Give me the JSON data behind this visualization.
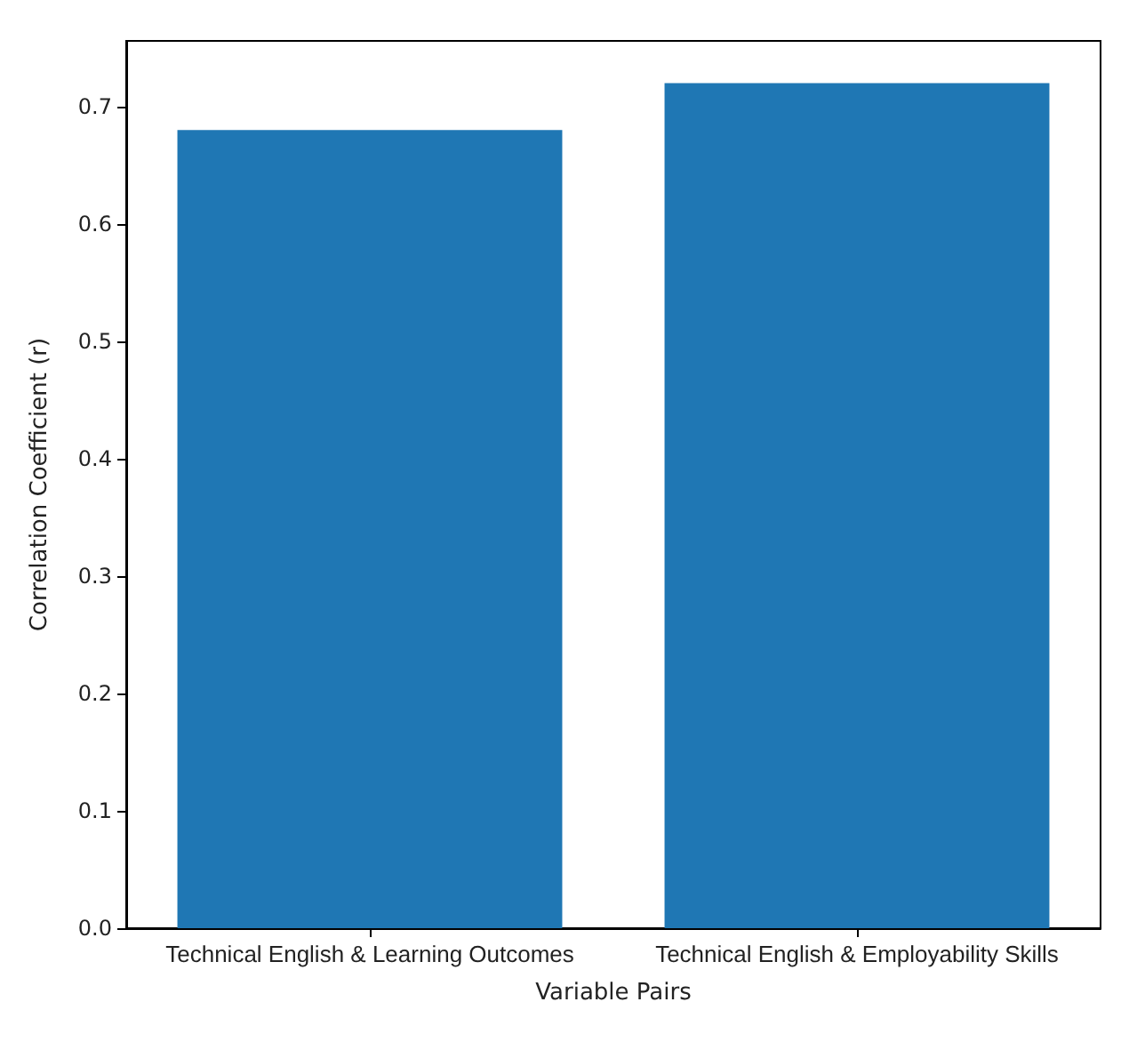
{
  "chart_data": {
    "type": "bar",
    "xlabel": "Variable Pairs",
    "ylabel": "Correlation Coefficient (r)",
    "categories": [
      "Technical English & Learning Outcomes",
      "Technical English & Employability Skills"
    ],
    "values": [
      0.68,
      0.72
    ],
    "color": "#1f77b4",
    "ylim": [
      0,
      0.756
    ],
    "yticks": [
      {
        "value": 0,
        "label": "0.0"
      },
      0.1,
      0.2,
      0.3,
      0.4,
      0.5,
      0.6,
      0.7
    ],
    "grid": false
  }
}
